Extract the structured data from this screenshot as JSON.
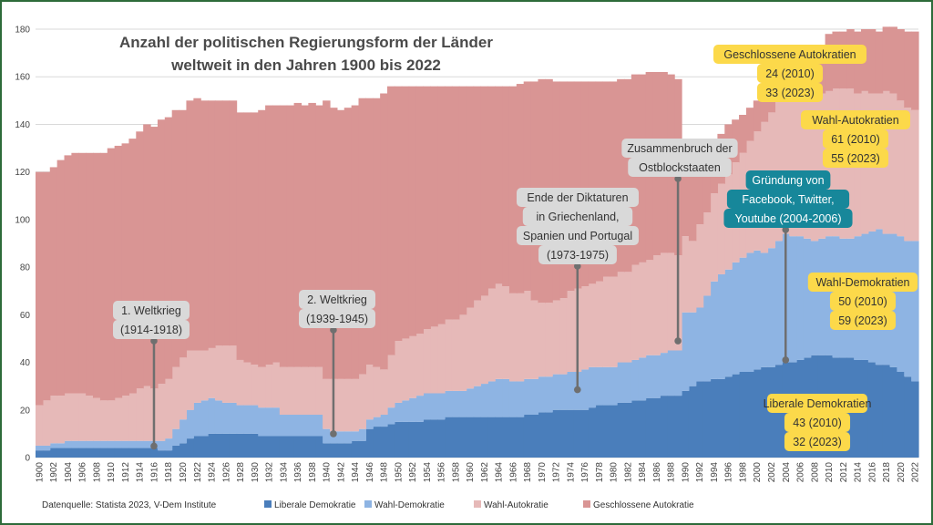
{
  "chart_data": {
    "type": "area",
    "title": [
      "Anzahl der politischen Regierungsform der Länder",
      "weltweit in den Jahren 1900 bis 2022"
    ],
    "xlabel": "",
    "ylabel": "",
    "ylim": [
      0,
      180
    ],
    "yticks": [
      0,
      20,
      40,
      60,
      80,
      100,
      120,
      140,
      160,
      180
    ],
    "x": [
      1900,
      1901,
      1902,
      1903,
      1904,
      1905,
      1906,
      1907,
      1908,
      1909,
      1910,
      1911,
      1912,
      1913,
      1914,
      1915,
      1916,
      1917,
      1918,
      1919,
      1920,
      1921,
      1922,
      1923,
      1924,
      1925,
      1926,
      1927,
      1928,
      1929,
      1930,
      1931,
      1932,
      1933,
      1934,
      1935,
      1936,
      1937,
      1938,
      1939,
      1940,
      1941,
      1942,
      1943,
      1944,
      1945,
      1946,
      1947,
      1948,
      1949,
      1950,
      1951,
      1952,
      1953,
      1954,
      1955,
      1956,
      1957,
      1958,
      1959,
      1960,
      1961,
      1962,
      1963,
      1964,
      1965,
      1966,
      1967,
      1968,
      1969,
      1970,
      1971,
      1972,
      1973,
      1974,
      1975,
      1976,
      1977,
      1978,
      1979,
      1980,
      1981,
      1982,
      1983,
      1984,
      1985,
      1986,
      1987,
      1988,
      1989,
      1990,
      1991,
      1992,
      1993,
      1994,
      1995,
      1996,
      1997,
      1998,
      1999,
      2000,
      2001,
      2002,
      2003,
      2004,
      2005,
      2006,
      2007,
      2008,
      2009,
      2010,
      2011,
      2012,
      2013,
      2014,
      2015,
      2016,
      2017,
      2018,
      2019,
      2020,
      2021,
      2022
    ],
    "xtick_labels": [
      "1900",
      "1902",
      "1904",
      "1906",
      "1908",
      "1910",
      "1912",
      "1914",
      "1916",
      "1918",
      "1920",
      "1922",
      "1924",
      "1926",
      "1928",
      "1930",
      "1932",
      "1934",
      "1936",
      "1938",
      "1940",
      "1942",
      "1944",
      "1946",
      "1948",
      "1950",
      "1952",
      "1954",
      "1956",
      "1958",
      "1960",
      "1962",
      "1964",
      "1966",
      "1968",
      "1970",
      "1972",
      "1974",
      "1976",
      "1978",
      "1980",
      "1982",
      "1984",
      "1986",
      "1988",
      "1990",
      "1992",
      "1994",
      "1996",
      "1998",
      "2000",
      "2002",
      "2004",
      "2006",
      "2008",
      "2010",
      "2012",
      "2014",
      "2016",
      "2018",
      "2020",
      "2022"
    ],
    "series": [
      {
        "name": "Liberale Demokratie",
        "color": "#4a7ebb",
        "values": [
          3,
          3,
          4,
          4,
          4,
          4,
          4,
          4,
          4,
          4,
          4,
          4,
          4,
          4,
          4,
          4,
          4,
          3,
          3,
          5,
          6,
          8,
          9,
          9,
          10,
          10,
          10,
          10,
          10,
          10,
          10,
          9,
          9,
          9,
          9,
          9,
          9,
          9,
          9,
          9,
          6,
          6,
          6,
          6,
          7,
          7,
          12,
          13,
          13,
          14,
          15,
          15,
          15,
          15,
          16,
          16,
          16,
          17,
          17,
          17,
          17,
          17,
          17,
          17,
          17,
          17,
          17,
          17,
          18,
          18,
          19,
          19,
          20,
          20,
          20,
          20,
          20,
          21,
          22,
          22,
          22,
          23,
          23,
          24,
          24,
          25,
          25,
          26,
          26,
          26,
          28,
          30,
          32,
          32,
          33,
          33,
          34,
          35,
          36,
          36,
          37,
          38,
          38,
          39,
          40,
          40,
          41,
          42,
          43,
          43,
          43,
          42,
          42,
          42,
          41,
          41,
          40,
          39,
          39,
          38,
          36,
          34,
          32
        ]
      },
      {
        "name": "Wahl-Demokratie",
        "color": "#8eb4e3",
        "values": [
          2,
          2,
          2,
          2,
          3,
          3,
          3,
          3,
          3,
          3,
          3,
          3,
          3,
          3,
          3,
          3,
          3,
          4,
          5,
          7,
          10,
          12,
          14,
          15,
          15,
          14,
          13,
          13,
          12,
          12,
          12,
          12,
          12,
          12,
          9,
          9,
          9,
          9,
          9,
          9,
          6,
          5,
          5,
          5,
          4,
          5,
          4,
          4,
          5,
          7,
          8,
          9,
          10,
          11,
          11,
          11,
          11,
          11,
          11,
          11,
          12,
          13,
          14,
          15,
          16,
          16,
          15,
          15,
          15,
          15,
          15,
          15,
          15,
          15,
          16,
          16,
          17,
          17,
          16,
          16,
          16,
          17,
          17,
          17,
          18,
          18,
          18,
          18,
          19,
          19,
          33,
          31,
          31,
          36,
          41,
          44,
          45,
          47,
          48,
          50,
          50,
          48,
          50,
          52,
          54,
          53,
          52,
          50,
          48,
          49,
          50,
          51,
          50,
          50,
          52,
          53,
          55,
          57,
          55,
          56,
          57,
          57,
          59
        ]
      },
      {
        "name": "Wahl-Autokratie",
        "color": "#e6b9b8",
        "values": [
          17,
          19,
          20,
          20,
          20,
          20,
          20,
          19,
          18,
          17,
          17,
          18,
          19,
          20,
          22,
          23,
          22,
          24,
          25,
          26,
          26,
          25,
          22,
          21,
          21,
          23,
          24,
          24,
          19,
          18,
          17,
          17,
          18,
          19,
          20,
          20,
          20,
          20,
          20,
          20,
          21,
          22,
          22,
          22,
          22,
          23,
          23,
          21,
          19,
          22,
          26,
          26,
          26,
          26,
          27,
          28,
          29,
          30,
          30,
          32,
          34,
          36,
          37,
          39,
          40,
          39,
          37,
          37,
          37,
          33,
          31,
          31,
          31,
          32,
          34,
          35,
          35,
          35,
          36,
          38,
          38,
          38,
          38,
          40,
          40,
          40,
          42,
          42,
          41,
          40,
          32,
          30,
          35,
          35,
          37,
          38,
          40,
          42,
          44,
          47,
          50,
          55,
          57,
          60,
          60,
          60,
          61,
          61,
          61,
          61,
          61,
          62,
          63,
          63,
          60,
          60,
          58,
          57,
          60,
          59,
          57,
          56,
          55
        ]
      },
      {
        "name": "Geschlossene Autokratie",
        "color": "#d99594",
        "values": [
          98,
          96,
          96,
          99,
          100,
          101,
          101,
          102,
          103,
          104,
          106,
          106,
          106,
          107,
          108,
          110,
          110,
          111,
          110,
          108,
          104,
          105,
          106,
          105,
          104,
          103,
          103,
          103,
          104,
          105,
          106,
          108,
          109,
          108,
          110,
          110,
          111,
          110,
          111,
          110,
          117,
          114,
          113,
          114,
          115,
          116,
          112,
          113,
          116,
          113,
          107,
          106,
          105,
          104,
          102,
          101,
          100,
          98,
          98,
          96,
          93,
          90,
          88,
          85,
          83,
          84,
          87,
          88,
          88,
          92,
          94,
          94,
          92,
          91,
          88,
          87,
          86,
          85,
          84,
          82,
          82,
          81,
          81,
          80,
          79,
          79,
          77,
          76,
          75,
          74,
          37,
          28,
          23,
          21,
          21,
          21,
          21,
          18,
          16,
          14,
          13,
          13,
          12,
          11,
          11,
          12,
          13,
          15,
          16,
          17,
          24,
          24,
          24,
          25,
          26,
          26,
          27,
          26,
          27,
          28,
          30,
          32,
          33
        ]
      }
    ],
    "grid": true,
    "legend_position": "bottom"
  },
  "annotations": [
    {
      "lines": [
        "1. Weltkrieg",
        "(1914-1918)"
      ],
      "style": "gray"
    },
    {
      "lines": [
        "2. Weltkrieg",
        "(1939-1945)"
      ],
      "style": "gray"
    },
    {
      "lines": [
        "Ende der Diktaturen",
        "in Griechenland,",
        "Spanien und Portugal",
        "(1973-1975)"
      ],
      "style": "gray"
    },
    {
      "lines": [
        "Zusammenbruch der",
        "Ostblockstaaten"
      ],
      "style": "gray"
    },
    {
      "lines": [
        "Gründung von",
        "Facebook, Twitter,",
        "Youtube (2004-2006)"
      ],
      "style": "teal"
    },
    {
      "lines": [
        "Geschlossene Autokratien",
        "24 (2010)",
        "33 (2023)"
      ],
      "style": "yellow"
    },
    {
      "lines": [
        "Wahl-Autokratien",
        "61 (2010)",
        "55 (2023)"
      ],
      "style": "yellow"
    },
    {
      "lines": [
        "Wahl-Demokratien",
        "50 (2010)",
        "59 (2023)"
      ],
      "style": "yellow"
    },
    {
      "lines": [
        "Liberale Demokratien",
        "43 (2010)",
        "32 (2023)"
      ],
      "style": "yellow"
    }
  ],
  "source": "Datenquelle: Statista 2023, V-Dem Institute",
  "colors": {
    "gray_box": "#d9d9d9",
    "teal_box": "#17879a",
    "yellow_box": "#fcd94a",
    "frame": "#2e6b3a"
  }
}
